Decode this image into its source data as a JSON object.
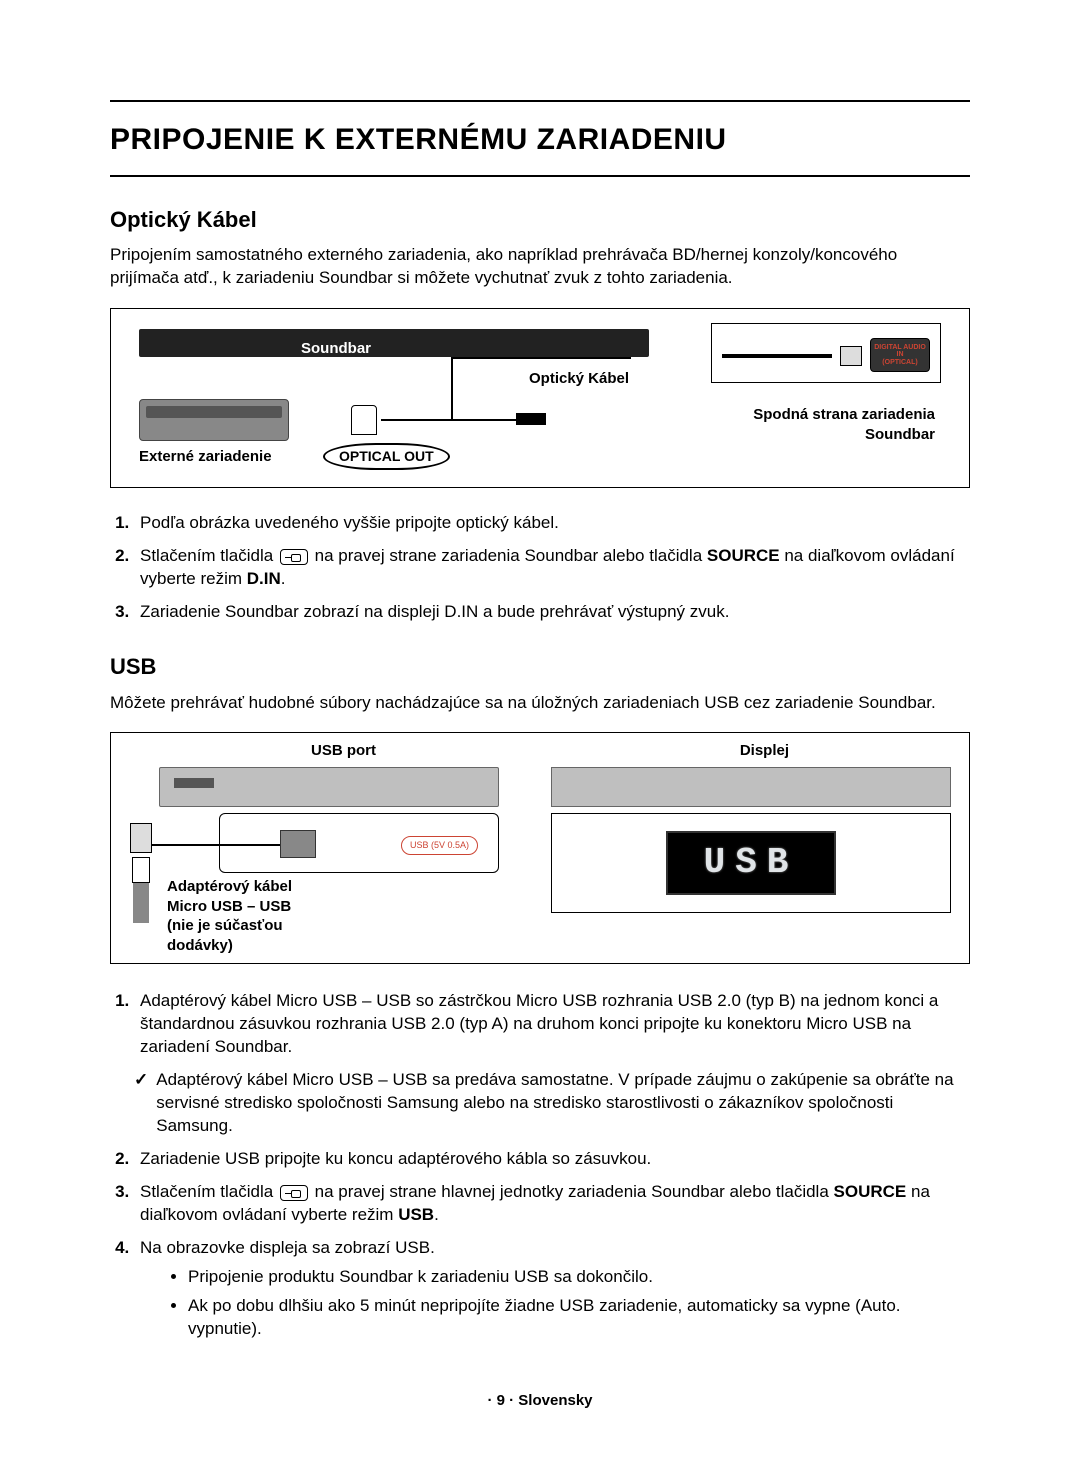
{
  "title": "PRIPOJENIE K EXTERNÉMU ZARIADENIU",
  "footer": "· 9 · Slovensky",
  "optical": {
    "heading": "Optický Kábel",
    "intro": "Pripojením samostatného externého zariadenia, ako napríklad prehrávača BD/hernej konzoly/koncového prijímača atď., k zariadeniu Soundbar si môžete vychutnať zvuk z tohto zariadenia.",
    "diagram": {
      "soundbar_label": "Soundbar",
      "cable_label": "Optický Kábel",
      "external_label": "Externé zariadenie",
      "optical_out_label": "OPTICAL OUT",
      "bottom_line1": "Spodná strana zariadenia",
      "bottom_line2": "Soundbar",
      "port_text_line1": "DIGITAL AUDIO IN",
      "port_text_line2": "(OPTICAL)",
      "colors": {
        "soundbar_fill": "#222222",
        "device_fill": "#888888",
        "border": "#000000",
        "port_label_color": "#c43"
      }
    },
    "steps": {
      "s1": "Podľa obrázka uvedeného vyššie pripojte optický kábel.",
      "s2_pre": "Stlačením tlačidla ",
      "s2_mid": " na pravej strane zariadenia Soundbar alebo tlačidla ",
      "s2_source": "SOURCE",
      "s2_post1": " na diaľkovom ovládaní vyberte režim ",
      "s2_mode": "D.IN",
      "s2_post2": ".",
      "s3": "Zariadenie Soundbar zobrazí na displeji D.IN a bude prehrávať výstupný zvuk."
    }
  },
  "usb": {
    "heading": "USB",
    "intro": "Môžete prehrávať hudobné súbory nachádzajúce sa na úložných zariadeniach USB cez zariadenie Soundbar.",
    "diagram": {
      "usb_port_label": "USB port",
      "displej_label": "Displej",
      "usb_socket_text": "USB (5V 0.5A)",
      "display_text": "USB",
      "adapter_l1": "Adaptérový kábel",
      "adapter_l2": "Micro USB – USB",
      "adapter_l3": "(nie je súčasťou",
      "adapter_l4": "dodávky)",
      "colors": {
        "bar_fill": "#bfbfbf",
        "screen_bg": "#000000",
        "screen_text": "#e0e4e7",
        "usb_label_border": "#c43"
      }
    },
    "steps": {
      "s1": "Adaptérový kábel Micro USB – USB so zástrčkou Micro USB rozhrania USB 2.0 (typ B) na jednom konci a štandardnou zásuvkou rozhrania USB 2.0 (typ A) na druhom konci pripojte ku konektoru Micro USB na zariadení Soundbar.",
      "check": "Adaptérový kábel Micro USB – USB sa predáva samostatne. V prípade záujmu o zakúpenie sa obráťte na servisné stredisko spoločnosti Samsung alebo na stredisko starostlivosti o zákazníkov spoločnosti Samsung.",
      "s2": "Zariadenie USB pripojte ku koncu adaptérového kábla so zásuvkou.",
      "s3_pre": "Stlačením tlačidla ",
      "s3_mid": " na pravej strane hlavnej jednotky zariadenia Soundbar alebo tlačidla ",
      "s3_source": "SOURCE",
      "s3_post1": " na diaľkovom ovládaní vyberte režim ",
      "s3_mode": "USB",
      "s3_post2": ".",
      "s4": "Na obrazovke displeja sa zobrazí USB.",
      "s4_b1": "Pripojenie produktu Soundbar k zariadeniu USB sa dokončilo.",
      "s4_b2": "Ak po dobu dlhšiu ako 5 minút nepripojíte žiadne USB zariadenie, automaticky sa vypne (Auto. vypnutie)."
    }
  }
}
